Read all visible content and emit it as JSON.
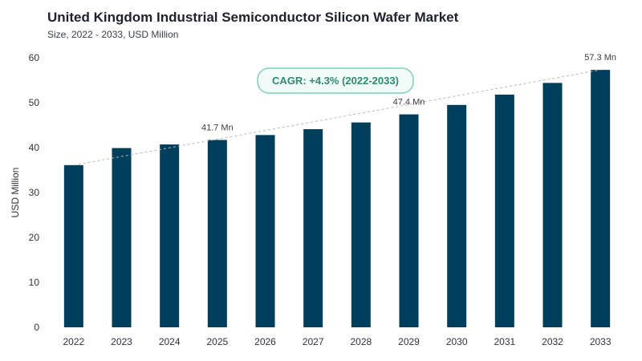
{
  "header": {
    "title": "United Kingdom Industrial Semiconductor Silicon Wafer Market",
    "subtitle": "Size, 2022 - 2033, USD Million"
  },
  "annotation": {
    "cagr": "CAGR: +4.3% (2022-2033)"
  },
  "colors": {
    "bar": "#003f5c",
    "cagr_border": "#7fd1b4",
    "cagr_fill": "#f1fbf7",
    "cagr_text": "#2e8b6e",
    "trend": "#b8b8b8"
  },
  "chart_data": {
    "type": "bar",
    "title": "United Kingdom Industrial Semiconductor Silicon Wafer Market",
    "subtitle": "Size, 2022 - 2033, USD Million",
    "xlabel": "",
    "ylabel": "USD Million",
    "ylim": [
      0,
      60
    ],
    "yticks": [
      0,
      10,
      20,
      30,
      40,
      50,
      60
    ],
    "categories": [
      "2022",
      "2023",
      "2024",
      "2025",
      "2026",
      "2027",
      "2028",
      "2029",
      "2030",
      "2031",
      "2032",
      "2033"
    ],
    "values": [
      36.1,
      39.9,
      40.7,
      41.7,
      42.8,
      44.1,
      45.6,
      47.4,
      49.5,
      51.8,
      54.4,
      57.3
    ],
    "data_labels": [
      {
        "index": 3,
        "text": "41.7 Mn"
      },
      {
        "index": 7,
        "text": "47.4 Mn"
      },
      {
        "index": 11,
        "text": "57.3 Mn"
      }
    ],
    "trendline": true,
    "grid": false,
    "legend": "none"
  }
}
